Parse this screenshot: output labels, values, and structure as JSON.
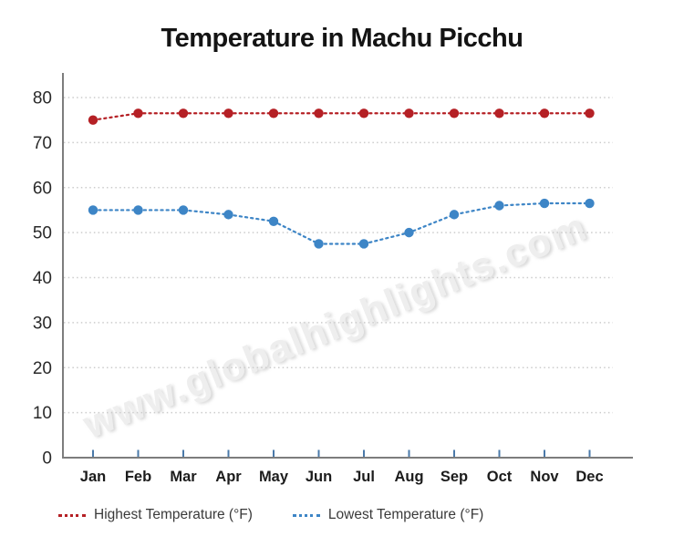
{
  "title": "Temperature in Machu Picchu",
  "watermark": "www.globalhighlights.com",
  "chart_data": {
    "type": "line",
    "title": "Temperature in Machu Picchu",
    "categories": [
      "Jan",
      "Feb",
      "Mar",
      "Apr",
      "May",
      "Jun",
      "Jul",
      "Aug",
      "Sep",
      "Oct",
      "Nov",
      "Dec"
    ],
    "series": [
      {
        "name": "Highest Temperature (°F)",
        "color": "#b52025",
        "line_style": "dotted",
        "marker": "circle",
        "values": [
          75,
          76.5,
          76.5,
          76.5,
          76.5,
          76.5,
          76.5,
          76.5,
          76.5,
          76.5,
          76.5,
          76.5
        ]
      },
      {
        "name": "Lowest Temperature (°F)",
        "color": "#3d85c6",
        "line_style": "dotted",
        "marker": "circle",
        "values": [
          55,
          55,
          55,
          54,
          52.5,
          47.5,
          47.5,
          50,
          54,
          56,
          56.5,
          56.5
        ]
      }
    ],
    "xlabel": "",
    "ylabel": "",
    "ylim": [
      0,
      80
    ],
    "yticks": [
      0,
      10,
      20,
      30,
      40,
      50,
      60,
      70,
      80
    ],
    "grid": "horizontal dotted",
    "legend_position": "bottom-left",
    "axis_color": "#7d7d7d",
    "gridline_color": "#cccccc",
    "tick_color": "#4a79a9",
    "tick_label_color": "#2a2a2a",
    "category_label_color": "#1c1c1c"
  }
}
